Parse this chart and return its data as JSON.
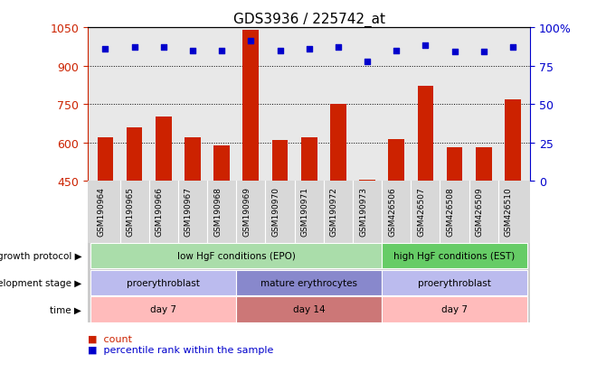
{
  "title": "GDS3936 / 225742_at",
  "samples": [
    "GSM190964",
    "GSM190965",
    "GSM190966",
    "GSM190967",
    "GSM190968",
    "GSM190969",
    "GSM190970",
    "GSM190971",
    "GSM190972",
    "GSM190973",
    "GSM426506",
    "GSM426507",
    "GSM426508",
    "GSM426509",
    "GSM426510"
  ],
  "counts": [
    620,
    660,
    700,
    620,
    590,
    1040,
    610,
    620,
    750,
    455,
    615,
    820,
    580,
    580,
    770
  ],
  "percentiles": [
    86,
    87,
    87,
    85,
    85,
    91,
    85,
    86,
    87,
    78,
    85,
    88,
    84,
    84,
    87
  ],
  "bar_color": "#cc2200",
  "dot_color": "#0000cc",
  "ymin": 450,
  "ymax": 1050,
  "yticks": [
    450,
    600,
    750,
    900,
    1050
  ],
  "y2min": 0,
  "y2max": 100,
  "y2ticks": [
    0,
    25,
    50,
    75,
    100
  ],
  "y2ticklabels": [
    "0",
    "25",
    "50",
    "75",
    "100%"
  ],
  "dotted_lines": [
    600,
    750,
    900
  ],
  "growth_protocol_groups": [
    {
      "label": "low HgF conditions (EPO)",
      "start": 0,
      "end": 10,
      "color": "#aaddaa"
    },
    {
      "label": "high HgF conditions (EST)",
      "start": 10,
      "end": 15,
      "color": "#66cc66"
    }
  ],
  "development_stage_groups": [
    {
      "label": "proerythroblast",
      "start": 0,
      "end": 5,
      "color": "#bbbbee"
    },
    {
      "label": "mature erythrocytes",
      "start": 5,
      "end": 10,
      "color": "#8888cc"
    },
    {
      "label": "proerythroblast",
      "start": 10,
      "end": 15,
      "color": "#bbbbee"
    }
  ],
  "time_groups": [
    {
      "label": "day 7",
      "start": 0,
      "end": 5,
      "color": "#ffbbbb"
    },
    {
      "label": "day 14",
      "start": 5,
      "end": 10,
      "color": "#cc7777"
    },
    {
      "label": "day 7",
      "start": 10,
      "end": 15,
      "color": "#ffbbbb"
    }
  ],
  "row_labels": [
    "growth protocol",
    "development stage",
    "time"
  ],
  "legend_color_count": "#cc2200",
  "legend_color_pct": "#0000cc",
  "legend_label_count": "count",
  "legend_label_pct": "percentile rank within the sample",
  "tick_label_color": "#cc2200",
  "tick2_label_color": "#0000cc",
  "axis_bg": "#e8e8e8",
  "sample_bg": "#d8d8d8",
  "plot_bg": "#ffffff"
}
